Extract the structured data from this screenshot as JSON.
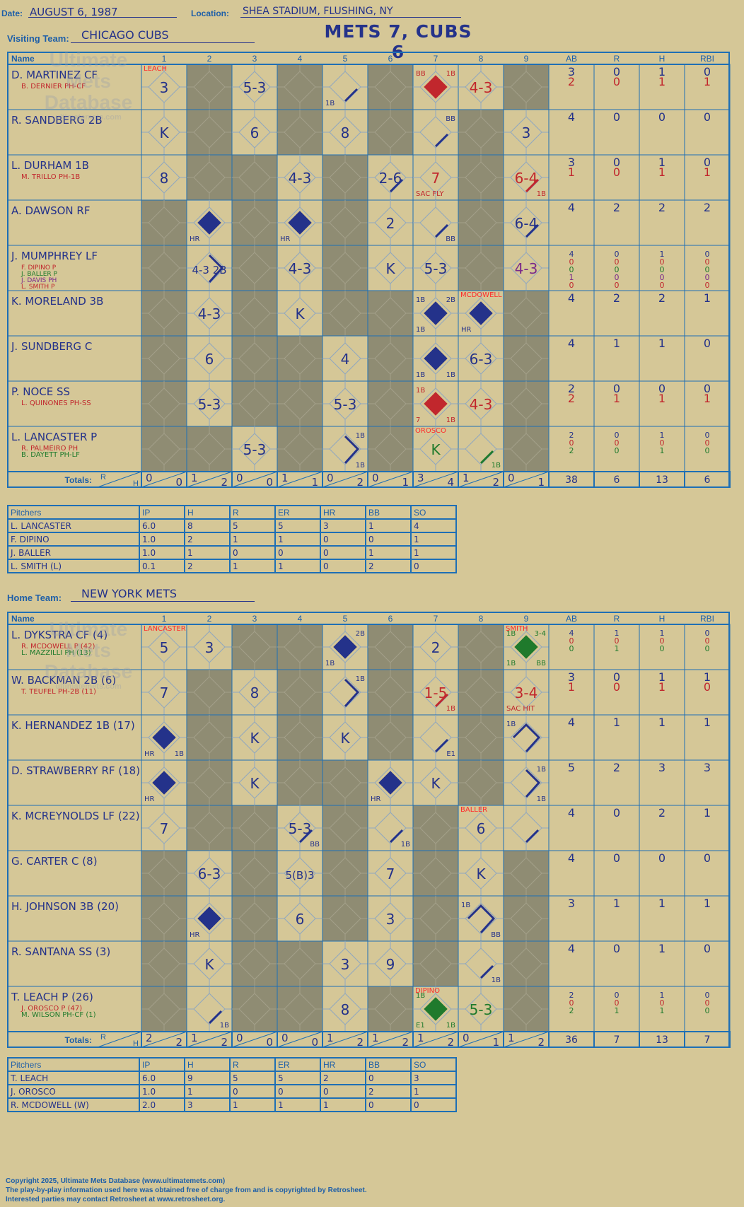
{
  "header": {
    "date_label": "Date:",
    "date": "AUGUST 6, 1987",
    "location_label": "Location:",
    "location": "SHEA STADIUM, FLUSHING, NY",
    "title": "METS 7, CUBS 6"
  },
  "visiting": {
    "label": "Visiting Team:",
    "team": "CHICAGO CUBS"
  },
  "home": {
    "label": "Home Team:",
    "team": "NEW YORK METS"
  },
  "grid_headers": {
    "name": "Name",
    "innings": [
      "1",
      "2",
      "3",
      "4",
      "5",
      "6",
      "7",
      "8",
      "9"
    ],
    "stats": [
      "AB",
      "R",
      "H",
      "RBI"
    ],
    "totals": "Totals:",
    "r": "R",
    "h": "H"
  },
  "watermark": {
    "line1": "Ultimate",
    "line2": "Mets",
    "line3": "Database",
    "url": "ultimatemets.com"
  },
  "visitor_batters": [
    {
      "name": "D. MARTINEZ CF",
      "subs": [
        {
          "text": "B. DERNIER PH-CF",
          "color": "#c1272d"
        }
      ],
      "ab": [
        "3",
        "2"
      ],
      "r": [
        "0",
        "0"
      ],
      "h": [
        "1",
        "1"
      ],
      "rbi": [
        "0",
        "1"
      ]
    },
    {
      "name": "R. SANDBERG 2B",
      "subs": [],
      "ab": [
        "4"
      ],
      "r": [
        "0"
      ],
      "h": [
        "0"
      ],
      "rbi": [
        "0"
      ]
    },
    {
      "name": "L. DURHAM 1B",
      "subs": [
        {
          "text": "M. TRILLO PH-1B",
          "color": "#c1272d"
        }
      ],
      "ab": [
        "3",
        "1"
      ],
      "r": [
        "0",
        "0"
      ],
      "h": [
        "1",
        "1"
      ],
      "rbi": [
        "0",
        "1"
      ]
    },
    {
      "name": "A. DAWSON RF",
      "subs": [],
      "ab": [
        "4"
      ],
      "r": [
        "2"
      ],
      "h": [
        "2"
      ],
      "rbi": [
        "2"
      ]
    },
    {
      "name": "J. MUMPHREY LF",
      "subs": [
        {
          "text": "F. DIPINO P",
          "color": "#c1272d"
        },
        {
          "text": "J. BALLER P",
          "color": "#1f7a2c"
        },
        {
          "text": "J. DAVIS PH",
          "color": "#7a2a8a"
        },
        {
          "text": "L. SMITH P",
          "color": "#c1272d"
        }
      ],
      "ab": [
        "4",
        "0",
        "0",
        "1",
        "0"
      ],
      "r": [
        "0",
        "0",
        "0",
        "0",
        "0"
      ],
      "h": [
        "1",
        "0",
        "0",
        "0",
        "0"
      ],
      "rbi": [
        "0",
        "0",
        "0",
        "0",
        "0"
      ]
    },
    {
      "name": "K. MORELAND 3B",
      "subs": [],
      "ab": [
        "4"
      ],
      "r": [
        "2"
      ],
      "h": [
        "2"
      ],
      "rbi": [
        "1"
      ]
    },
    {
      "name": "J. SUNDBERG C",
      "subs": [],
      "ab": [
        "4"
      ],
      "r": [
        "1"
      ],
      "h": [
        "1"
      ],
      "rbi": [
        "0"
      ]
    },
    {
      "name": "P. NOCE SS",
      "subs": [
        {
          "text": "L. QUINONES PH-SS",
          "color": "#c1272d"
        }
      ],
      "ab": [
        "2",
        "2"
      ],
      "r": [
        "0",
        "1"
      ],
      "h": [
        "0",
        "1"
      ],
      "rbi": [
        "0",
        "1"
      ]
    },
    {
      "name": "L. LANCASTER P",
      "subs": [
        {
          "text": "R. PALMEIRO PH",
          "color": "#c1272d"
        },
        {
          "text": "B. DAYETT PH-LF",
          "color": "#1f7a2c"
        }
      ],
      "ab": [
        "2",
        "0",
        "2"
      ],
      "r": [
        "0",
        "0",
        "0"
      ],
      "h": [
        "1",
        "0",
        "1"
      ],
      "rbi": [
        "0",
        "0",
        "0"
      ]
    }
  ],
  "visitor_cells": [
    [
      {
        "n": "3",
        "note": "LEACH",
        "nc": "#ff2a2a"
      },
      {},
      {
        "n": "5-3"
      },
      {},
      {
        "n": "",
        "bl": "1B",
        "p": "first"
      },
      {},
      {
        "n": "",
        "tl": "BB",
        "tr": "1B",
        "p": "home",
        "c": "#c1272d"
      },
      {
        "n": "4-3",
        "c": "#c1272d"
      },
      {}
    ],
    [
      {
        "n": "K"
      },
      {},
      {
        "n": "6"
      },
      {},
      {
        "n": "8"
      },
      {},
      {
        "n": "",
        "tr": "BB",
        "p": "first"
      },
      {},
      {
        "n": "3"
      }
    ],
    [
      {
        "n": "8"
      },
      {},
      {},
      {
        "n": "4-3"
      },
      {},
      {
        "n": "2-6",
        "p": "first"
      },
      {
        "n": "7",
        "bl": "SAC FLY",
        "c": "#c1272d"
      },
      {},
      {
        "n": "6-4",
        "p": "first",
        "c": "#c1272d",
        "br": "1B"
      }
    ],
    [
      {},
      {
        "n": "",
        "bl": "HR",
        "p": "home"
      },
      {},
      {
        "n": "",
        "bl": "HR",
        "p": "home"
      },
      {},
      {
        "n": "2"
      },
      {
        "n": "",
        "br": "BB",
        "p": "first"
      },
      {},
      {
        "n": "6-4",
        "p": "first"
      }
    ],
    [
      {},
      {
        "n": "4-3 2B",
        "p": "second"
      },
      {},
      {
        "n": "4-3"
      },
      {},
      {
        "n": "K"
      },
      {
        "n": "5-3"
      },
      {},
      {
        "n": "4-3",
        "c": "#7a2a8a"
      }
    ],
    [
      {},
      {
        "n": "4-3"
      },
      {},
      {
        "n": "K"
      },
      {},
      {},
      {
        "n": "",
        "tl": "1B",
        "tr": "2B",
        "bl": "1B",
        "p": "home"
      },
      {
        "n": "",
        "bl": "HR",
        "p": "home",
        "note": "MCDOWELL",
        "nc": "#ff2a2a"
      },
      {}
    ],
    [
      {},
      {
        "n": "6"
      },
      {},
      {},
      {
        "n": "4"
      },
      {},
      {
        "n": "",
        "bl": "1B",
        "br": "1B",
        "p": "home"
      },
      {
        "n": "6-3"
      },
      {}
    ],
    [
      {},
      {
        "n": "5-3"
      },
      {},
      {},
      {
        "n": "5-3"
      },
      {},
      {
        "n": "",
        "tl": "1B",
        "bl": "7",
        "br": "1B",
        "p": "home",
        "c": "#c1272d"
      },
      {
        "n": "4-3",
        "c": "#c1272d"
      },
      {}
    ],
    [
      {},
      {},
      {
        "n": "5-3"
      },
      {},
      {
        "n": "",
        "tr": "1B",
        "br": "1B",
        "p": "second"
      },
      {},
      {
        "n": "K",
        "note": "OROSCO",
        "nc": "#ff2a2a",
        "c": "#1f7a2c"
      },
      {
        "n": "",
        "br": "1B",
        "p": "first",
        "c": "#1f7a2c"
      },
      {}
    ]
  ],
  "visitor_totals": {
    "innings": [
      [
        "0",
        "0"
      ],
      [
        "1",
        "2"
      ],
      [
        "0",
        "0"
      ],
      [
        "1",
        "1"
      ],
      [
        "0",
        "2"
      ],
      [
        "0",
        "1"
      ],
      [
        "3",
        "4"
      ],
      [
        "1",
        "2"
      ],
      [
        "0",
        "1"
      ]
    ],
    "ab": "38",
    "r": "6",
    "h": "13",
    "rbi": "6"
  },
  "visitor_pitching": {
    "headers": [
      "Pitchers",
      "IP",
      "H",
      "R",
      "ER",
      "HR",
      "BB",
      "SO"
    ],
    "rows": [
      [
        "L. LANCASTER",
        "6.0",
        "8",
        "5",
        "5",
        "3",
        "1",
        "4"
      ],
      [
        "F. DIPINO",
        "1.0",
        "2",
        "1",
        "1",
        "0",
        "0",
        "1"
      ],
      [
        "J. BALLER",
        "1.0",
        "1",
        "0",
        "0",
        "0",
        "1",
        "1"
      ],
      [
        "L. SMITH (L)",
        "0.1",
        "2",
        "1",
        "1",
        "0",
        "2",
        "0"
      ]
    ]
  },
  "home_batters": [
    {
      "name": "L. DYKSTRA CF (4)",
      "subs": [
        {
          "text": "R. MCDOWELL P (42)",
          "color": "#c1272d"
        },
        {
          "text": "L. MAZZILLI PH (13)",
          "color": "#1f7a2c"
        }
      ],
      "ab": [
        "4",
        "0",
        "0"
      ],
      "r": [
        "1",
        "0",
        "1"
      ],
      "h": [
        "1",
        "0",
        "0"
      ],
      "rbi": [
        "0",
        "0",
        "0"
      ]
    },
    {
      "name": "W. BACKMAN 2B (6)",
      "subs": [
        {
          "text": "T. TEUFEL PH-2B (11)",
          "color": "#c1272d"
        }
      ],
      "ab": [
        "3",
        "1"
      ],
      "r": [
        "0",
        "0"
      ],
      "h": [
        "1",
        "1"
      ],
      "rbi": [
        "1",
        "0"
      ]
    },
    {
      "name": "K. HERNANDEZ 1B (17)",
      "subs": [],
      "ab": [
        "4"
      ],
      "r": [
        "1"
      ],
      "h": [
        "1"
      ],
      "rbi": [
        "1"
      ]
    },
    {
      "name": "D. STRAWBERRY RF (18)",
      "subs": [],
      "ab": [
        "5"
      ],
      "r": [
        "2"
      ],
      "h": [
        "3"
      ],
      "rbi": [
        "3"
      ]
    },
    {
      "name": "K. MCREYNOLDS LF (22)",
      "subs": [],
      "ab": [
        "4"
      ],
      "r": [
        "0"
      ],
      "h": [
        "2"
      ],
      "rbi": [
        "1"
      ]
    },
    {
      "name": "G. CARTER C (8)",
      "subs": [],
      "ab": [
        "4"
      ],
      "r": [
        "0"
      ],
      "h": [
        "0"
      ],
      "rbi": [
        "0"
      ]
    },
    {
      "name": "H. JOHNSON 3B (20)",
      "subs": [],
      "ab": [
        "3"
      ],
      "r": [
        "1"
      ],
      "h": [
        "1"
      ],
      "rbi": [
        "1"
      ]
    },
    {
      "name": "R. SANTANA SS (3)",
      "subs": [],
      "ab": [
        "4"
      ],
      "r": [
        "0"
      ],
      "h": [
        "1"
      ],
      "rbi": [
        "0"
      ]
    },
    {
      "name": "T. LEACH P (26)",
      "subs": [
        {
          "text": "J. OROSCO P (47)",
          "color": "#c1272d"
        },
        {
          "text": "M. WILSON PH-CF (1)",
          "color": "#1f7a2c"
        }
      ],
      "ab": [
        "2",
        "0",
        "2"
      ],
      "r": [
        "0",
        "0",
        "1"
      ],
      "h": [
        "1",
        "0",
        "1"
      ],
      "rbi": [
        "0",
        "0",
        "0"
      ]
    }
  ],
  "home_cells": [
    [
      {
        "n": "5",
        "note": "LANCASTER",
        "nc": "#ff2a2a"
      },
      {
        "n": "3"
      },
      {},
      {},
      {
        "n": "",
        "tr": "2B",
        "bl": "1B",
        "p": "home"
      },
      {},
      {
        "n": "2"
      },
      {},
      {
        "n": "",
        "tl": "1B",
        "tr": "3-4",
        "bl": "1B",
        "br": "BB",
        "p": "home",
        "c": "#1f7a2c",
        "note": "SMITH",
        "nc": "#ff2a2a"
      }
    ],
    [
      {
        "n": "7"
      },
      {},
      {
        "n": "8"
      },
      {},
      {
        "n": "",
        "tr": "1B",
        "p": "second"
      },
      {},
      {
        "n": "1-5",
        "br": "1B",
        "p": "first",
        "c": "#c1272d"
      },
      {},
      {
        "n": "3-4",
        "bl": "SAC HIT",
        "c": "#c1272d"
      }
    ],
    [
      {
        "n": "",
        "bl": "HR",
        "br": "1B",
        "p": "home"
      },
      {},
      {
        "n": "K"
      },
      {},
      {
        "n": "K"
      },
      {},
      {
        "n": "",
        "br": "E1",
        "p": "first"
      },
      {},
      {
        "n": "",
        "tl": "1B",
        "p": "third"
      }
    ],
    [
      {
        "n": "",
        "bl": "HR",
        "p": "home"
      },
      {},
      {
        "n": "K"
      },
      {},
      {},
      {
        "n": "",
        "bl": "HR",
        "p": "home"
      },
      {
        "n": "K"
      },
      {},
      {
        "n": "",
        "tr": "1B",
        "br": "1B",
        "p": "second"
      }
    ],
    [
      {
        "n": "7"
      },
      {},
      {},
      {
        "n": "5-3",
        "br": "BB",
        "p": "first"
      },
      {},
      {
        "n": "",
        "br": "1B",
        "p": "first"
      },
      {},
      {
        "n": "6",
        "note": "BALLER",
        "nc": "#ff2a2a"
      },
      {
        "n": "",
        "p": "first"
      }
    ],
    [
      {},
      {
        "n": "6-3"
      },
      {},
      {
        "n": "5(B)3"
      },
      {},
      {
        "n": "7"
      },
      {},
      {
        "n": "K"
      },
      {}
    ],
    [
      {},
      {
        "n": "",
        "bl": "HR",
        "p": "home"
      },
      {},
      {
        "n": "6"
      },
      {},
      {
        "n": "3"
      },
      {},
      {
        "n": "",
        "tl": "1B",
        "br": "BB",
        "p": "third"
      },
      {}
    ],
    [
      {},
      {
        "n": "K"
      },
      {},
      {},
      {
        "n": "3"
      },
      {
        "n": "9"
      },
      {},
      {
        "n": "",
        "br": "1B",
        "p": "first"
      },
      {}
    ],
    [
      {},
      {
        "n": "",
        "br": "1B",
        "p": "first"
      },
      {},
      {},
      {
        "n": "8"
      },
      {},
      {
        "n": "",
        "tl": "1B",
        "bl": "E1",
        "br": "1B",
        "p": "home",
        "c": "#1f7a2c",
        "note": "DIPINO",
        "nc": "#ff2a2a"
      },
      {
        "n": "5-3",
        "c": "#1f7a2c"
      },
      {}
    ]
  ],
  "home_totals": {
    "innings": [
      [
        "2",
        "2"
      ],
      [
        "1",
        "2"
      ],
      [
        "0",
        "0"
      ],
      [
        "0",
        "0"
      ],
      [
        "1",
        "2"
      ],
      [
        "1",
        "2"
      ],
      [
        "1",
        "2"
      ],
      [
        "0",
        "1"
      ],
      [
        "1",
        "2"
      ]
    ],
    "ab": "36",
    "r": "7",
    "h": "13",
    "rbi": "7"
  },
  "home_pitching": {
    "headers": [
      "Pitchers",
      "IP",
      "H",
      "R",
      "ER",
      "HR",
      "BB",
      "SO"
    ],
    "rows": [
      [
        "T. LEACH",
        "6.0",
        "9",
        "5",
        "5",
        "2",
        "0",
        "3"
      ],
      [
        "J. OROSCO",
        "1.0",
        "1",
        "0",
        "0",
        "0",
        "2",
        "1"
      ],
      [
        "R. MCDOWELL (W)",
        "2.0",
        "3",
        "1",
        "1",
        "1",
        "0",
        "0"
      ]
    ]
  },
  "footer": {
    "line1": "Copyright 2025, Ultimate Mets Database (www.ultimatemets.com)",
    "line2": "The play-by-play information used here was obtained free of charge from and is copyrighted by Retrosheet.",
    "line3": "Interested parties may contact Retrosheet at www.retrosheet.org."
  },
  "colors": {
    "grid": "#1e6fb5",
    "ink": "#24328a",
    "gray_cell": "#8f8c73",
    "red": "#c1272d",
    "green": "#1f7a2c",
    "background": "#d5c797"
  }
}
